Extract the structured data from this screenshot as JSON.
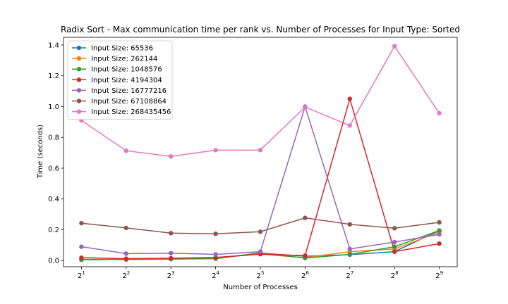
{
  "chart_data": {
    "type": "line",
    "title": "Radix Sort - Max communication time per rank vs. Number of Processes for Input Type: Sorted",
    "xlabel": "Number of Processes",
    "ylabel": "Time (seconds)",
    "x": [
      2,
      4,
      8,
      16,
      32,
      64,
      128,
      256,
      512
    ],
    "x_scale": "log2",
    "x_tick_labels": [
      {
        "base": "2",
        "exp": "1"
      },
      {
        "base": "2",
        "exp": "2"
      },
      {
        "base": "2",
        "exp": "3"
      },
      {
        "base": "2",
        "exp": "4"
      },
      {
        "base": "2",
        "exp": "5"
      },
      {
        "base": "2",
        "exp": "6"
      },
      {
        "base": "2",
        "exp": "7"
      },
      {
        "base": "2",
        "exp": "8"
      },
      {
        "base": "2",
        "exp": "9"
      }
    ],
    "ylim": [
      -0.04,
      1.45
    ],
    "y_ticks": [
      0.0,
      0.2,
      0.4,
      0.6,
      0.8,
      1.0,
      1.2,
      1.4
    ],
    "y_tick_labels": [
      "0.0",
      "0.2",
      "0.4",
      "0.6",
      "0.8",
      "1.0",
      "1.2",
      "1.4"
    ],
    "grid": false,
    "legend_position": "top-left",
    "series": [
      {
        "name": "Input Size: 65536",
        "color": "#1f77b4",
        "values": [
          0.005,
          0.008,
          0.01,
          0.015,
          0.048,
          0.028,
          0.038,
          0.058,
          0.195
        ]
      },
      {
        "name": "Input Size: 262144",
        "color": "#ff7f0e",
        "values": [
          0.008,
          0.006,
          0.012,
          0.018,
          0.042,
          0.018,
          0.058,
          0.075,
          0.185
        ]
      },
      {
        "name": "Input Size: 1048576",
        "color": "#2ca02c",
        "values": [
          0.007,
          0.007,
          0.01,
          0.012,
          0.05,
          0.016,
          0.04,
          0.09,
          0.195
        ]
      },
      {
        "name": "Input Size: 4194304",
        "color": "#d62728",
        "values": [
          0.018,
          0.012,
          0.015,
          0.02,
          0.042,
          0.032,
          1.05,
          0.058,
          0.11
        ]
      },
      {
        "name": "Input Size: 16777216",
        "color": "#9467bd",
        "values": [
          0.09,
          0.045,
          0.048,
          0.04,
          0.058,
          1.0,
          0.075,
          0.12,
          0.17
        ]
      },
      {
        "name": "Input Size: 67108864",
        "color": "#8c564b",
        "values": [
          0.243,
          0.212,
          0.178,
          0.174,
          0.187,
          0.277,
          0.235,
          0.21,
          0.248
        ]
      },
      {
        "name": "Input Size: 268435456",
        "color": "#e377c2",
        "values": [
          0.91,
          0.713,
          0.676,
          0.717,
          0.718,
          0.997,
          0.877,
          1.392,
          0.957
        ]
      }
    ]
  }
}
